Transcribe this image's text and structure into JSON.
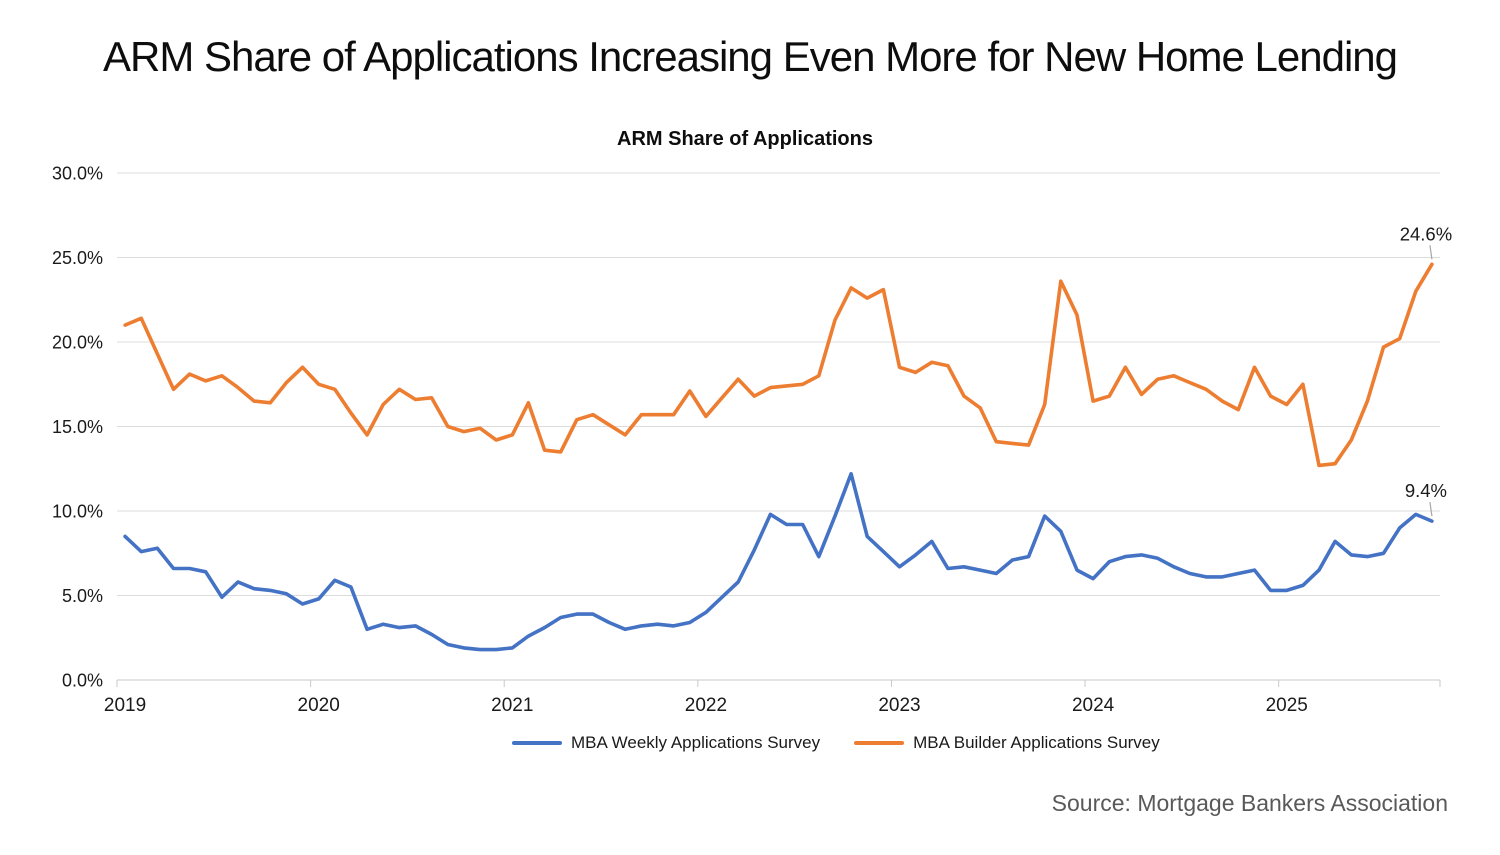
{
  "header": {
    "title": "ARM Share of Applications Increasing Even More for New Home Lending"
  },
  "source_note": "Source: Mortgage Bankers Association",
  "chart_data": {
    "type": "line",
    "title": "ARM Share of Applications",
    "x_frequency": "monthly",
    "x_start": "2019-01",
    "x_end": "2025-10",
    "x_tick_labels": [
      "2019",
      "2020",
      "2021",
      "2022",
      "2023",
      "2024",
      "2025"
    ],
    "y_tick_labels": [
      "30.0%",
      "25.0%",
      "20.0%",
      "15.0%",
      "10.0%",
      "5.0%",
      "0.0%"
    ],
    "ylim": [
      0,
      30
    ],
    "grid": true,
    "legend_position": "bottom",
    "gridline_color": "#dcdcdc",
    "axis_color": "#c9c9c9",
    "leader_line_color": "#a6a6a6",
    "series": [
      {
        "name": "MBA Weekly Applications Survey",
        "color": "#4472C4",
        "end_label": "9.4%",
        "values": [
          8.5,
          7.6,
          7.8,
          6.6,
          6.6,
          6.4,
          4.9,
          5.8,
          5.4,
          5.3,
          5.1,
          4.5,
          4.8,
          5.9,
          5.5,
          3.0,
          3.3,
          3.1,
          3.2,
          2.7,
          2.1,
          1.9,
          1.8,
          1.8,
          1.9,
          2.6,
          3.1,
          3.7,
          3.9,
          3.9,
          3.4,
          3.0,
          3.2,
          3.3,
          3.2,
          3.4,
          4.0,
          4.9,
          5.8,
          7.7,
          9.8,
          9.2,
          9.2,
          7.3,
          9.7,
          12.2,
          8.5,
          7.6,
          6.7,
          7.4,
          8.2,
          6.6,
          6.7,
          6.5,
          6.3,
          7.1,
          7.3,
          9.7,
          8.8,
          6.5,
          6.0,
          7.0,
          7.3,
          7.4,
          7.2,
          6.7,
          6.3,
          6.1,
          6.1,
          6.3,
          6.5,
          5.3,
          5.3,
          5.6,
          6.5,
          8.2,
          7.4,
          7.3,
          7.5,
          9.0,
          9.8,
          9.4
        ]
      },
      {
        "name": "MBA Builder Applications Survey",
        "color": "#ED7D31",
        "end_label": "24.6%",
        "values": [
          21.0,
          21.4,
          19.3,
          17.2,
          18.1,
          17.7,
          18.0,
          17.3,
          16.5,
          16.4,
          17.6,
          18.5,
          17.5,
          17.2,
          15.8,
          14.5,
          16.3,
          17.2,
          16.6,
          16.7,
          15.0,
          14.7,
          14.9,
          14.2,
          14.5,
          16.4,
          13.6,
          13.5,
          15.4,
          15.7,
          15.1,
          14.5,
          15.7,
          15.7,
          15.7,
          17.1,
          15.6,
          16.7,
          17.8,
          16.8,
          17.3,
          17.4,
          17.5,
          18.0,
          21.3,
          23.2,
          22.6,
          23.1,
          18.5,
          18.2,
          18.8,
          18.6,
          16.8,
          16.1,
          14.1,
          14.0,
          13.9,
          16.3,
          23.6,
          21.6,
          16.5,
          16.8,
          18.5,
          16.9,
          17.8,
          18.0,
          17.6,
          17.2,
          16.5,
          16.0,
          18.5,
          16.8,
          16.3,
          17.5,
          12.7,
          12.8,
          14.2,
          16.5,
          19.7,
          20.2,
          23.0,
          24.6
        ]
      }
    ]
  }
}
